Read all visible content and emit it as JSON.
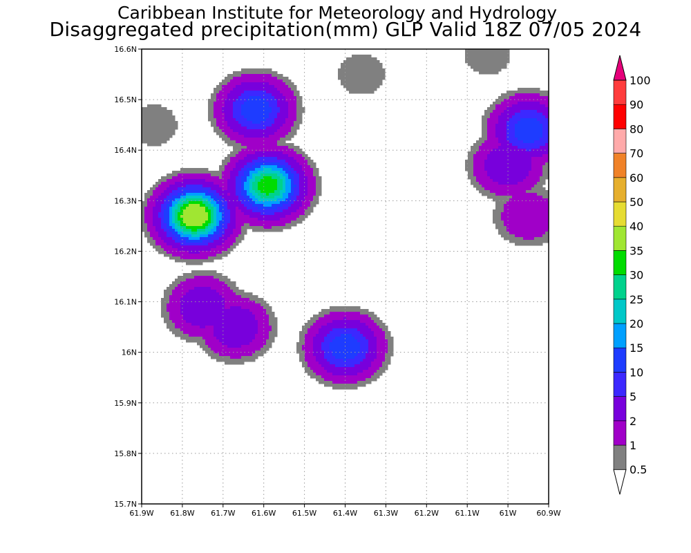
{
  "title": {
    "line1": "Caribbean Institute for Meteorology and Hydrology",
    "line2": "Disaggregated precipitation(mm) GLP Valid 18Z 07/05 2024"
  },
  "map": {
    "lon_range": [
      -61.9,
      -60.9
    ],
    "lat_range": [
      15.7,
      16.6
    ],
    "lon_ticks": [
      {
        "value": -61.9,
        "label": "61.9W"
      },
      {
        "value": -61.8,
        "label": "61.8W"
      },
      {
        "value": -61.7,
        "label": "61.7W"
      },
      {
        "value": -61.6,
        "label": "61.6W"
      },
      {
        "value": -61.5,
        "label": "61.5W"
      },
      {
        "value": -61.4,
        "label": "61.4W"
      },
      {
        "value": -61.3,
        "label": "61.3W"
      },
      {
        "value": -61.2,
        "label": "61.2W"
      },
      {
        "value": -61.1,
        "label": "61.1W"
      },
      {
        "value": -61.0,
        "label": "61W"
      },
      {
        "value": -60.9,
        "label": "60.9W"
      }
    ],
    "lat_ticks": [
      {
        "value": 16.6,
        "label": "16.6N"
      },
      {
        "value": 16.5,
        "label": "16.5N"
      },
      {
        "value": 16.4,
        "label": "16.4N"
      },
      {
        "value": 16.3,
        "label": "16.3N"
      },
      {
        "value": 16.2,
        "label": "16.2N"
      },
      {
        "value": 16.1,
        "label": "16.1N"
      },
      {
        "value": 16.0,
        "label": "16N"
      },
      {
        "value": 15.9,
        "label": "15.9N"
      },
      {
        "value": 15.8,
        "label": "15.8N"
      },
      {
        "value": 15.7,
        "label": "15.7N"
      }
    ],
    "grid": true,
    "precip_cells": [
      {
        "lon": -61.87,
        "lat": 16.45,
        "peak": 2
      },
      {
        "lon": -61.62,
        "lat": 16.48,
        "peak": 20
      },
      {
        "lon": -61.36,
        "lat": 16.55,
        "peak": 2
      },
      {
        "lon": -61.05,
        "lat": 16.59,
        "peak": 2
      },
      {
        "lon": -61.77,
        "lat": 16.27,
        "peak": 50
      },
      {
        "lon": -61.59,
        "lat": 16.33,
        "peak": 40
      },
      {
        "lon": -61.75,
        "lat": 16.09,
        "peak": 10
      },
      {
        "lon": -61.67,
        "lat": 16.05,
        "peak": 10
      },
      {
        "lon": -61.4,
        "lat": 16.01,
        "peak": 20
      },
      {
        "lon": -60.95,
        "lat": 16.44,
        "peak": 20
      },
      {
        "lon": -61.0,
        "lat": 16.37,
        "peak": 10
      },
      {
        "lon": -60.95,
        "lat": 16.27,
        "peak": 5
      }
    ]
  },
  "colorbar": {
    "levels": [
      {
        "label": "0.5",
        "color": "#ffffff"
      },
      {
        "label": "1",
        "color": "#808080"
      },
      {
        "label": "2",
        "color": "#a000c8"
      },
      {
        "label": "5",
        "color": "#7800dc"
      },
      {
        "label": "10",
        "color": "#3c28ff"
      },
      {
        "label": "15",
        "color": "#1e3cff"
      },
      {
        "label": "20",
        "color": "#00a0ff"
      },
      {
        "label": "25",
        "color": "#00c8c8"
      },
      {
        "label": "30",
        "color": "#00d28c"
      },
      {
        "label": "35",
        "color": "#00dc00"
      },
      {
        "label": "40",
        "color": "#a0e632"
      },
      {
        "label": "50",
        "color": "#e6dc32"
      },
      {
        "label": "60",
        "color": "#e6af2d"
      },
      {
        "label": "70",
        "color": "#f08228"
      },
      {
        "label": "80",
        "color": "#ffaaaa"
      },
      {
        "label": "90",
        "color": "#ff0000"
      },
      {
        "label": "100",
        "color": "#ff3c3c"
      }
    ],
    "top_arrow_color": "#e6007a"
  }
}
